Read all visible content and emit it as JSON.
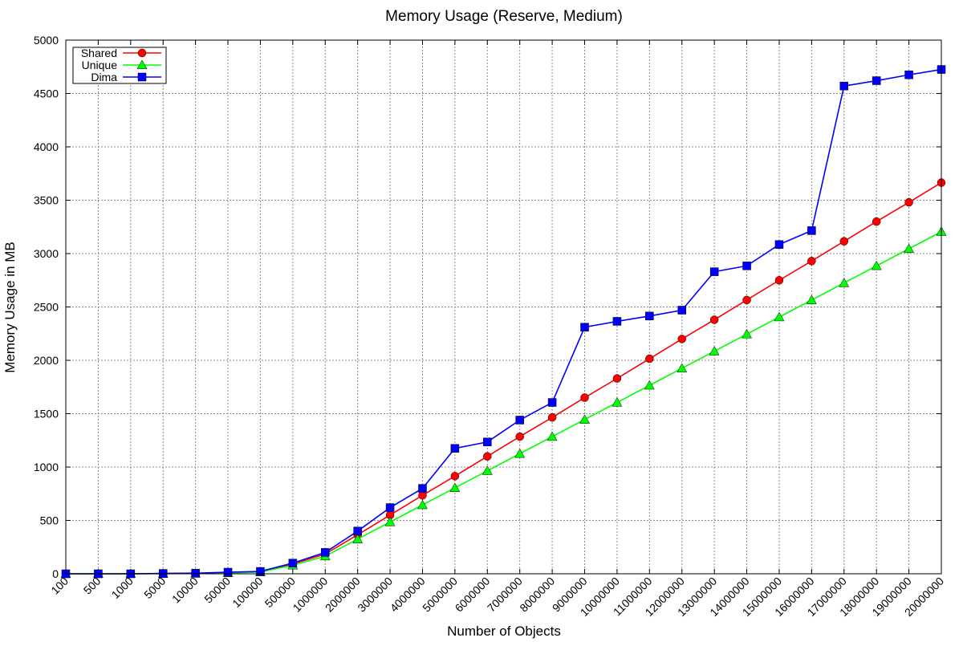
{
  "chart_data": {
    "type": "line",
    "title": "Memory Usage (Reserve, Medium)",
    "xlabel": "Number of Objects",
    "ylabel": "Memory Usage in MB",
    "ylim": [
      0,
      5000
    ],
    "yticks": [
      0,
      500,
      1000,
      1500,
      2000,
      2500,
      3000,
      3500,
      4000,
      4500,
      5000
    ],
    "grid": true,
    "legend_position": "top-left",
    "categories": [
      "100",
      "500",
      "1000",
      "5000",
      "10000",
      "50000",
      "100000",
      "500000",
      "1000000",
      "2000000",
      "3000000",
      "4000000",
      "5000000",
      "6000000",
      "7000000",
      "8000000",
      "9000000",
      "10000000",
      "11000000",
      "12000000",
      "13000000",
      "14000000",
      "15000000",
      "16000000",
      "17000000",
      "18000000",
      "19000000",
      "20000000"
    ],
    "series": [
      {
        "name": "Shared",
        "color": "#ff0000",
        "marker": "circle",
        "values": [
          0,
          0,
          0,
          2,
          4,
          10,
          18,
          92,
          185,
          365,
          550,
          735,
          915,
          1100,
          1285,
          1465,
          1650,
          1830,
          2015,
          2200,
          2380,
          2565,
          2750,
          2930,
          3115,
          3300,
          3480,
          3665
        ]
      },
      {
        "name": "Unique",
        "color": "#00ff00",
        "marker": "triangle",
        "values": [
          0,
          0,
          0,
          1,
          3,
          8,
          16,
          80,
          165,
          325,
          485,
          645,
          805,
          965,
          1125,
          1285,
          1445,
          1605,
          1765,
          1925,
          2085,
          2245,
          2405,
          2565,
          2725,
          2885,
          3045,
          3205
        ]
      },
      {
        "name": "Dima",
        "color": "#0000ff",
        "marker": "square",
        "values": [
          0,
          0,
          0,
          3,
          6,
          15,
          22,
          100,
          200,
          400,
          620,
          800,
          1175,
          1235,
          1440,
          1605,
          2310,
          2365,
          2415,
          2470,
          2830,
          2885,
          3085,
          3215,
          4570,
          4620,
          4675,
          4725
        ]
      }
    ]
  }
}
